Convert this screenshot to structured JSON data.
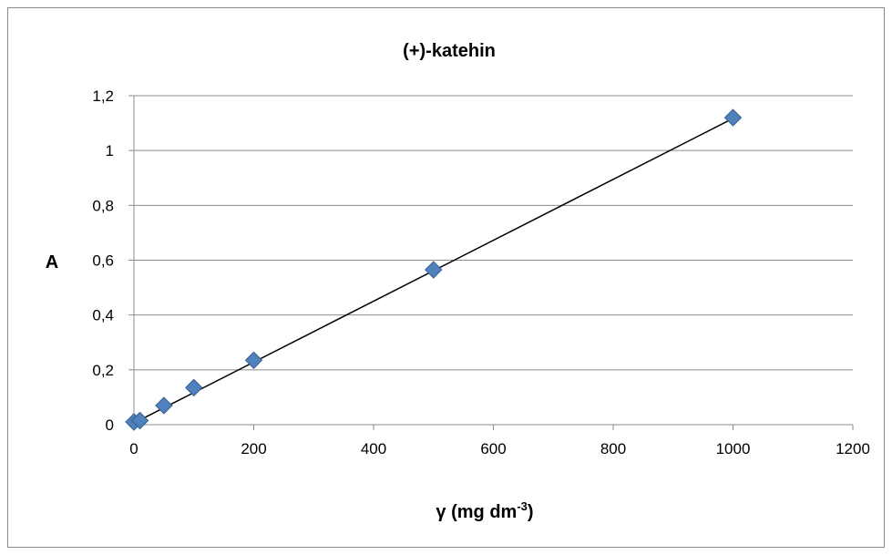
{
  "chart_data": {
    "type": "scatter",
    "title": "(+)-katehin",
    "xlabel": {
      "base": "γ (mg dm",
      "sup": "-3",
      "close": ")"
    },
    "ylabel": "A",
    "xlim": [
      0,
      1200
    ],
    "ylim": [
      0,
      1.2
    ],
    "x_ticks": [
      0,
      200,
      400,
      600,
      800,
      1000,
      1200
    ],
    "x_tick_labels": [
      "0",
      "200",
      "400",
      "600",
      "800",
      "1000",
      "1200"
    ],
    "y_ticks": [
      0,
      0.2,
      0.4,
      0.6,
      0.8,
      1.0,
      1.2
    ],
    "y_tick_labels": [
      "0",
      "0,2",
      "0,4",
      "0,6",
      "0,8",
      "1",
      "1,2"
    ],
    "grid": "horizontal",
    "legend": "none",
    "series": [
      {
        "x": [
          0,
          10,
          50,
          100,
          200,
          500,
          1000
        ],
        "y": [
          0.01,
          0.015,
          0.07,
          0.135,
          0.235,
          0.565,
          1.12
        ],
        "marker": "diamond",
        "color": "#4F81BD",
        "edge_color": "#385D8A"
      }
    ],
    "trendline": {
      "type": "linear",
      "x": [
        0,
        1000
      ],
      "y": [
        0.006,
        1.117
      ],
      "color": "#000000"
    }
  }
}
